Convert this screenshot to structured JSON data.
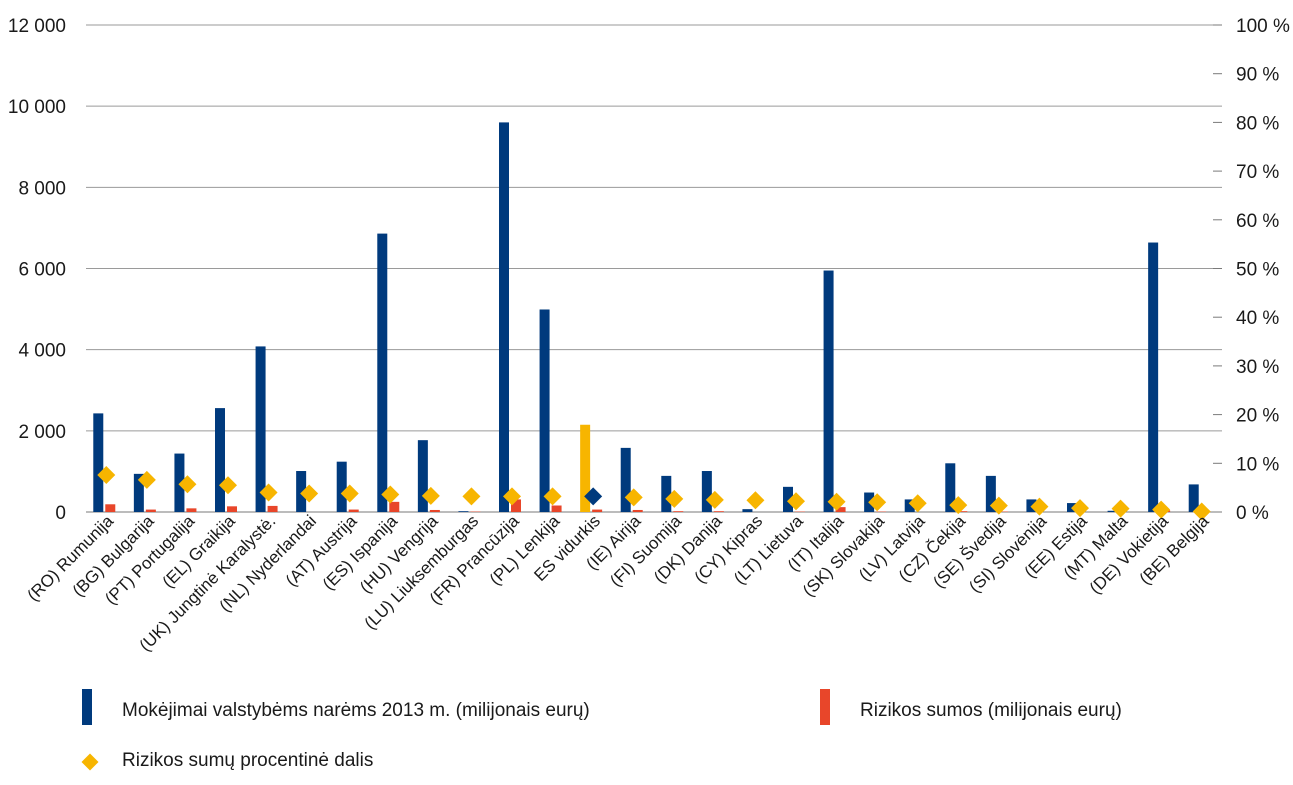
{
  "chart_data": {
    "type": "bar",
    "categories": [
      "(RO) Rumunija",
      "(BG) Bulgarija",
      "(PT) Portugalija",
      "(EL) Graikija",
      "(UK) Jungtinė Karalystė.",
      "(NL) Nyderlandai",
      "(AT) Austrija",
      "(ES) Ispanija",
      "(HU) Vengrija",
      "(LU) Liuksemburgas",
      "(FR) Prancūzija",
      "(PL) Lenkija",
      "ES vidurkis",
      "(IE) Airija",
      "(FI) Suomija",
      "(DK) Danija",
      "(CY) Kipras",
      "(LT) Lietuva",
      "(IT) Italija",
      "(SK) Slovakija",
      "(LV) Latvija",
      "(CZ) Čekija",
      "(SE) Švedija",
      "(SI) Slovėnija",
      "(EE) Estija",
      "(MT) Malta",
      "(DE) Vokietija",
      "(BE) Belgija"
    ],
    "series": [
      {
        "name": "Mokėjimai valstybėms narėms 2013 m. (milijonais eurų)",
        "axis": "left",
        "color": "#003a7d",
        "highlight_color": "#f7b500",
        "highlight_index": 12,
        "values": [
          2430,
          940,
          1440,
          2560,
          4080,
          1010,
          1240,
          6860,
          1770,
          20,
          9600,
          4990,
          2150,
          1580,
          890,
          1010,
          70,
          620,
          5950,
          480,
          310,
          1200,
          890,
          310,
          220,
          30,
          6640,
          680
        ]
      },
      {
        "name": "Rizikos sumos (milijonais eurų)",
        "axis": "left",
        "color": "#e8462a",
        "values": [
          190,
          60,
          90,
          140,
          150,
          0,
          60,
          250,
          50,
          10,
          310,
          160,
          60,
          50,
          20,
          20,
          0,
          10,
          120,
          10,
          0,
          20,
          10,
          0,
          0,
          0,
          40,
          0
        ]
      },
      {
        "name": "Rizikos sumų procentinė dalis",
        "axis": "right",
        "type": "scatter",
        "marker": "diamond",
        "color": "#f7b500",
        "highlight_color": "#003a7d",
        "highlight_index": 12,
        "values": [
          7.6,
          6.6,
          5.7,
          5.5,
          4.0,
          3.8,
          3.8,
          3.6,
          3.3,
          3.2,
          3.2,
          3.2,
          3.2,
          3.0,
          2.7,
          2.5,
          2.4,
          2.2,
          2.1,
          2.0,
          1.8,
          1.4,
          1.3,
          1.1,
          0.8,
          0.7,
          0.5,
          0.1
        ]
      }
    ],
    "y_left": {
      "lim": [
        0,
        12000
      ],
      "ticks": [
        0,
        2000,
        4000,
        6000,
        8000,
        10000,
        12000
      ],
      "tick_labels": [
        "0",
        "2 000",
        "4 000",
        "6 000",
        "8 000",
        "10 000",
        "12 000"
      ]
    },
    "y_right": {
      "lim": [
        0,
        100
      ],
      "ticks": [
        0,
        10,
        20,
        30,
        40,
        50,
        60,
        70,
        80,
        90,
        100
      ],
      "tick_labels": [
        "0 %",
        "10 %",
        "20 %",
        "30 %",
        "40 %",
        "50 %",
        "60 %",
        "70 %",
        "80 %",
        "90 %",
        "100 %"
      ]
    },
    "grid": "horizontal",
    "legend_position": "bottom"
  },
  "legend": {
    "payments_label": "Mokėjimai valstybėms narėms 2013 m. (milijonais eurų)",
    "risk_label": "Rizikos sumos (milijonais eurų)",
    "percent_label": "Rizikos sumų procentinė dalis"
  }
}
